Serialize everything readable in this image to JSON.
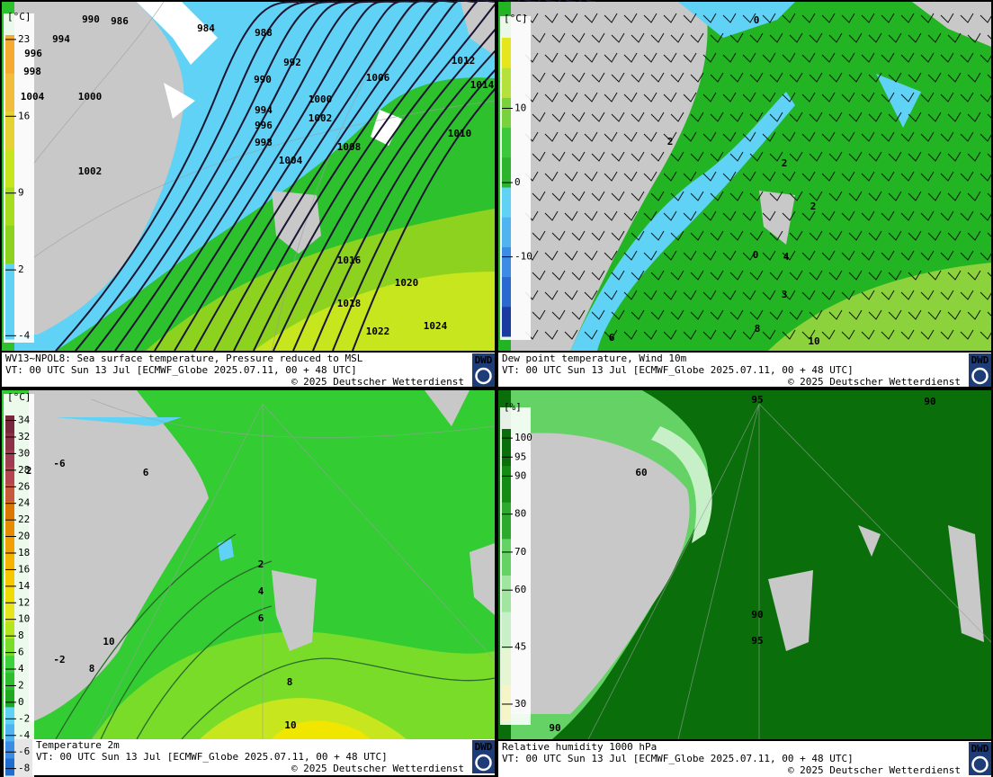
{
  "panels": [
    {
      "legend": {
        "unit": "[°C]",
        "lim": [
          -4.3,
          23.4
        ],
        "ticks": [
          23,
          16,
          9,
          2,
          -4
        ],
        "colors": [
          "#5fd2f5",
          "#5fd2f5",
          "#8cd21e",
          "#a8dc1e",
          "#c8e61e",
          "#e6d232",
          "#f0be3c",
          "#f5aa32"
        ]
      },
      "caption": {
        "title": "WV13~NPOL8: Sea surface temperature,  Pressure reduced to MSL",
        "valid_time": "VT: 00 UTC Sun  13 Jul [ECMWF_Globe 2025.07.11, 00 + 48 UTC]",
        "copyright": "© 2025 Deutscher Wetterdienst"
      },
      "logo": "DWD",
      "labels": [
        984,
        988,
        990,
        992,
        994,
        996,
        998,
        1000,
        1002,
        1004,
        1006,
        1008,
        1010,
        1012,
        1014,
        1016,
        1018,
        1020,
        1022,
        1024,
        990,
        986,
        994,
        996,
        998,
        1000,
        1002,
        1004
      ]
    },
    {
      "legend": {
        "unit": "[°C]",
        "lim": [
          -20.7,
          19.5
        ],
        "ticks": [
          10,
          0,
          -10
        ],
        "colors": [
          "#1a3ca0",
          "#2a6ad0",
          "#3c8ce6",
          "#50b4f0",
          "#60d2f5",
          "#2db42d",
          "#3cc83c",
          "#78d23c",
          "#b4e13c",
          "#e6e61e"
        ]
      },
      "caption": {
        "title": "Dew point temperature, Wind 10m",
        "valid_time": "VT: 00 UTC Sun  13 Jul [ECMWF_Globe 2025.07.11,  00 + 48 UTC]",
        "copyright": "© 2025 Deutscher Wetterdienst"
      },
      "logo": "DWD",
      "labels": [
        0,
        10,
        2,
        2,
        2,
        0,
        4,
        6,
        8,
        3
      ]
    },
    {
      "legend": {
        "unit": "[°C]",
        "lim": [
          -8.8,
          34.6
        ],
        "ticks": [
          34,
          32,
          30,
          28,
          26,
          24,
          22,
          20,
          18,
          16,
          14,
          12,
          10,
          8,
          6,
          4,
          2,
          0,
          -2,
          -4,
          -6,
          -8
        ],
        "colors": [
          "#1e6ed2",
          "#3c8ce6",
          "#50b4f0",
          "#5fd2f5",
          "#1eaa1e",
          "#2dbe2d",
          "#3cd23c",
          "#78dc28",
          "#b4e61e",
          "#e6e61e",
          "#f0dc00",
          "#f5c800",
          "#f5b400",
          "#f0a000",
          "#e68c00",
          "#dc7800",
          "#c85a3c",
          "#b44650",
          "#a03c50",
          "#8c3246",
          "#78283c"
        ]
      },
      "caption": {
        "title": "Temperature 2m",
        "valid_time": "VT: 00 UTC Sun  13 Jul [ECMWF_Globe 2025.07.11, 00 + 48 UTC]",
        "copyright": "© 2025 Deutscher Wetterdienst"
      },
      "logo": "DWD",
      "labels": [
        10,
        8,
        6,
        4,
        2,
        10,
        6,
        8,
        2,
        -2,
        -6
      ]
    },
    {
      "legend": {
        "unit": "[%]",
        "lim": [
          25.5,
          102.4
        ],
        "ticks": [
          100,
          95,
          90,
          80,
          70,
          60,
          45,
          30
        ],
        "colors": [
          "#f5f5c8",
          "#e6f5d2",
          "#c8f0c8",
          "#a0e6a0",
          "#64d264",
          "#2daa2d",
          "#148c14",
          "#0a6e0a"
        ]
      },
      "caption": {
        "title": "Relative humidity 1000 hPa",
        "valid_time": "VT: 00 UTC Sun  13 Jul [ECMWF_Globe 2025.07.11, 00 + 48 UTC]",
        "copyright": "© 2025 Deutscher Wetterdienst"
      },
      "logo": "DWD",
      "labels": [
        95,
        90,
        60,
        90,
        95,
        90
      ]
    }
  ]
}
